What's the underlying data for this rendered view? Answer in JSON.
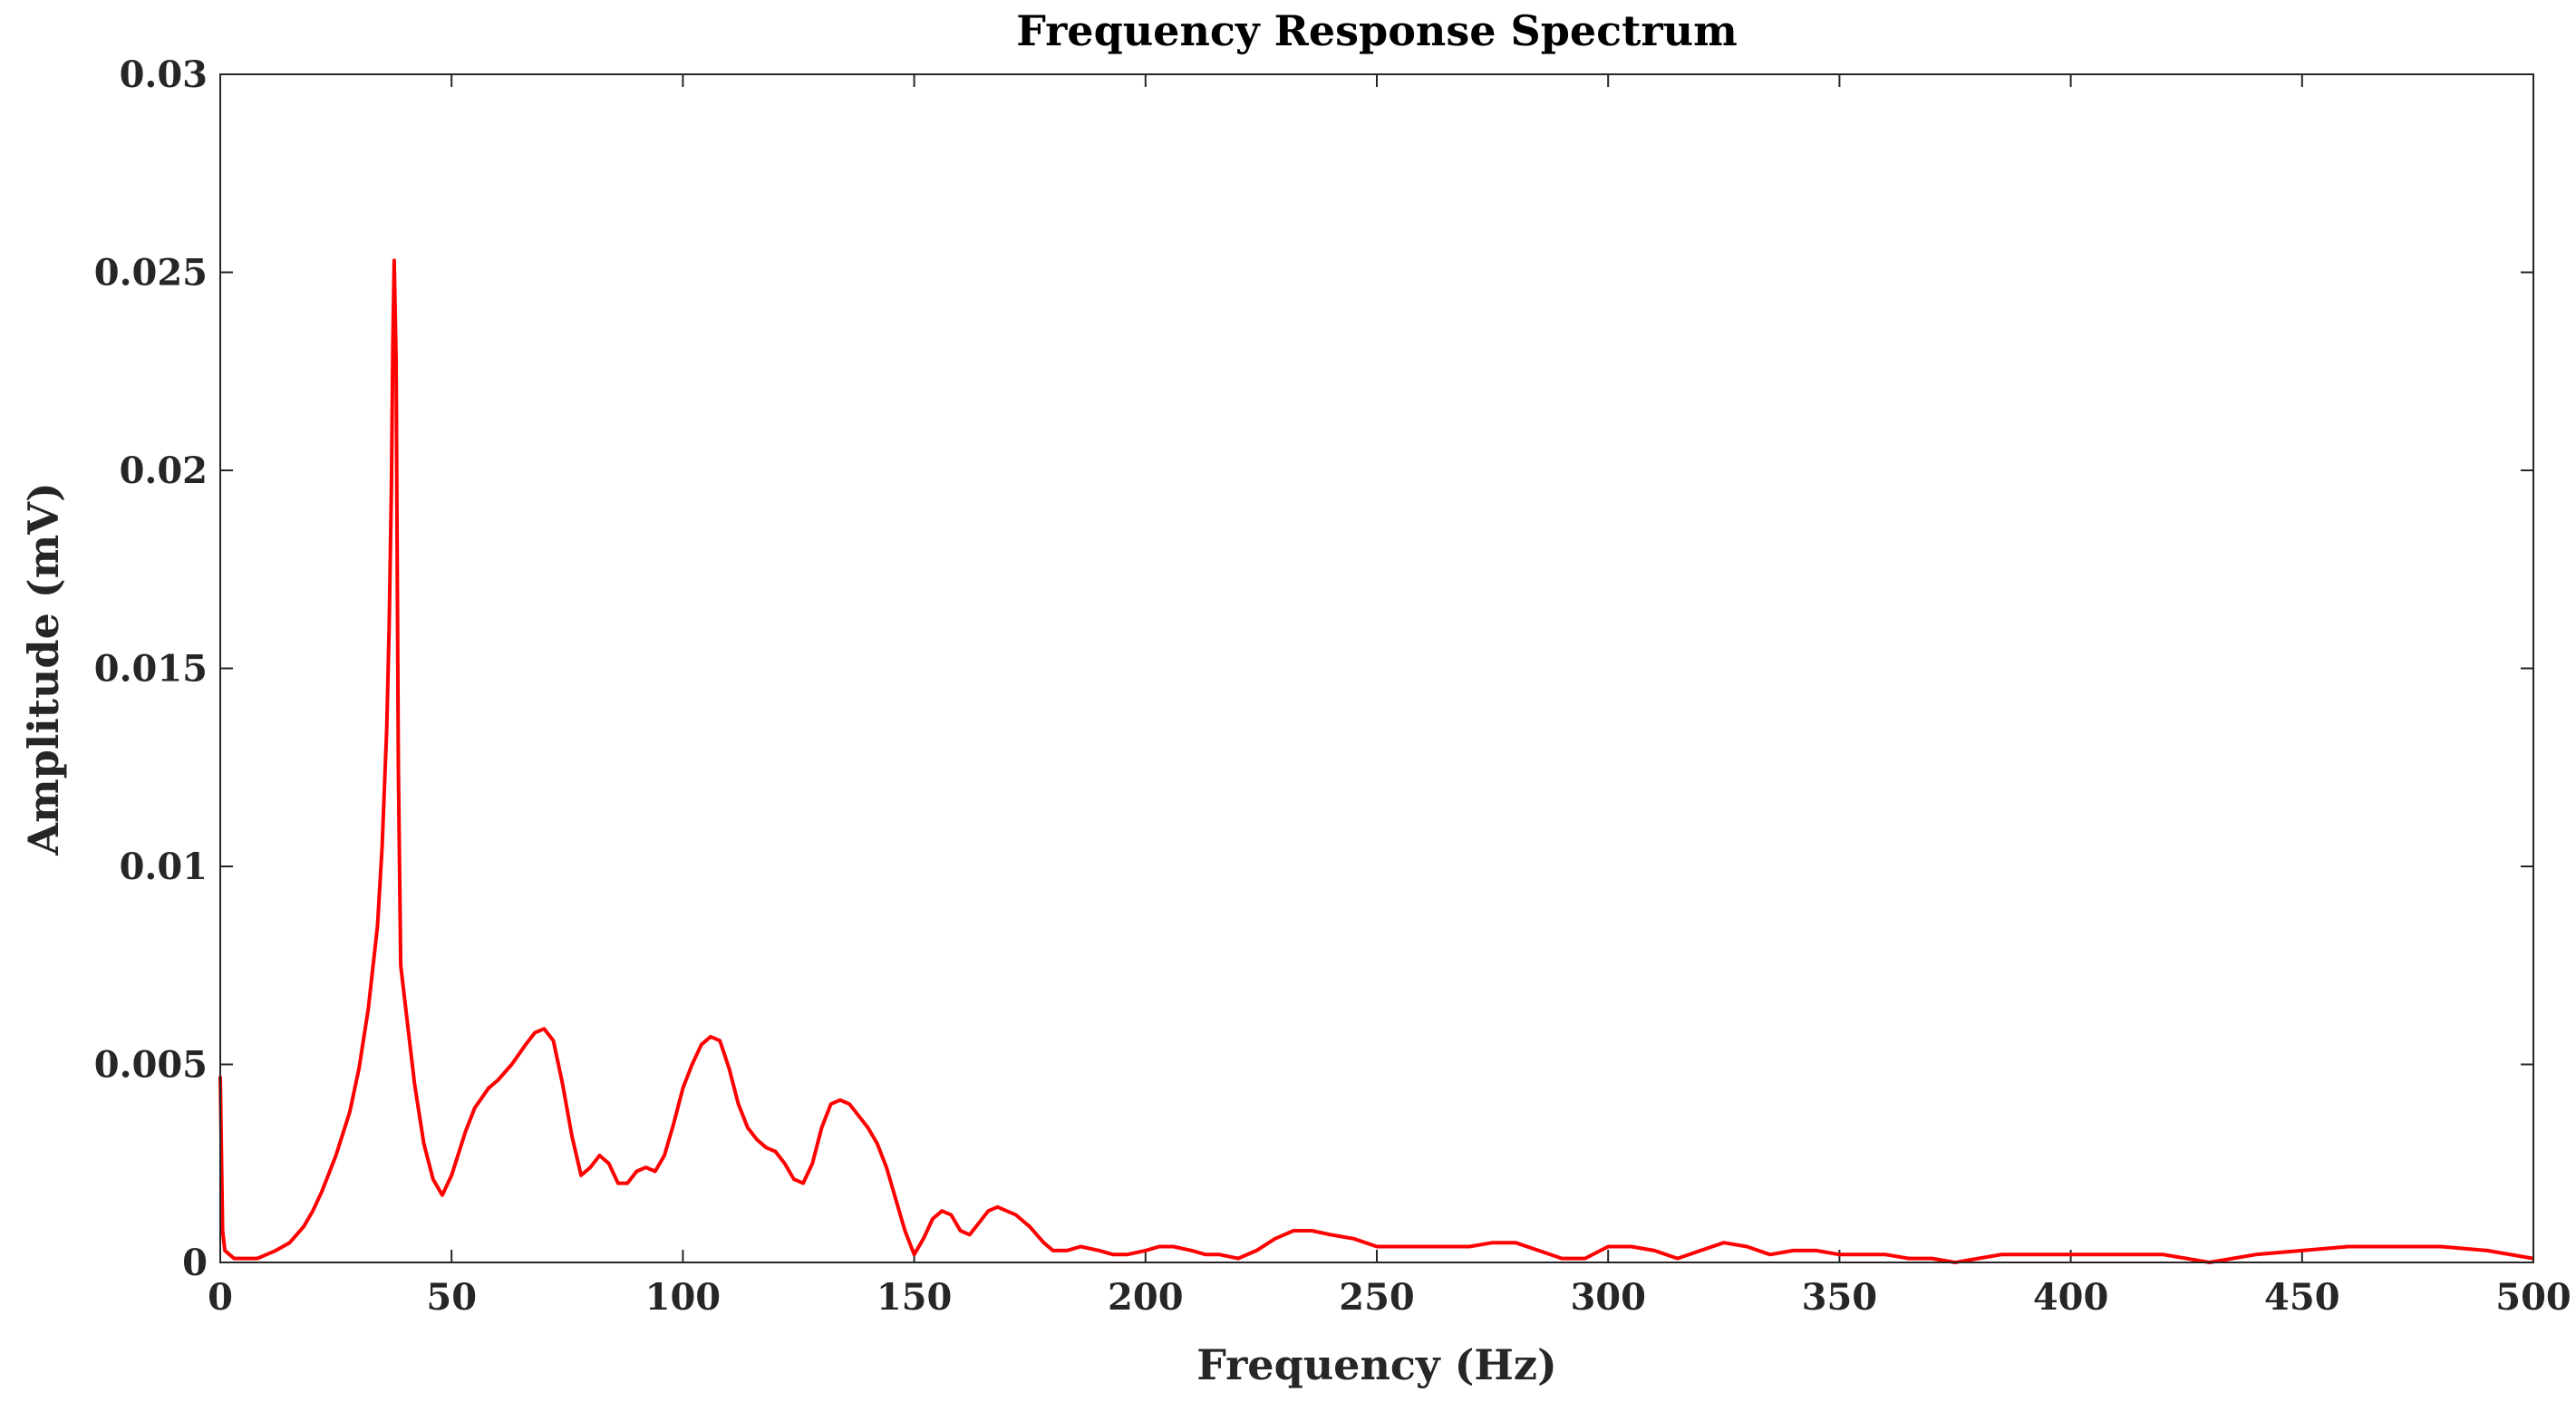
{
  "chart_data": {
    "type": "line",
    "title": "Frequency Response Spectrum",
    "xlabel": "Frequency (Hz)",
    "ylabel": "Amplitude (mV)",
    "xlim": [
      0,
      500
    ],
    "ylim": [
      0,
      0.03
    ],
    "x_ticks": [
      "0",
      "50",
      "100",
      "150",
      "200",
      "250",
      "300",
      "350",
      "400",
      "450",
      "500"
    ],
    "y_ticks": [
      "0",
      "0.005",
      "0.01",
      "0.015",
      "0.02",
      "0.025",
      "0.03"
    ],
    "grid": false,
    "series_color": "#ff0000",
    "series": [
      {
        "x": [
          0,
          0.5,
          1,
          2,
          3,
          5,
          8,
          10,
          12,
          15,
          18,
          20,
          22,
          25,
          28,
          30,
          32,
          34,
          35,
          36,
          36.5,
          37,
          37.3,
          37.6,
          38,
          38.5,
          39,
          40,
          42,
          44,
          46,
          48,
          50,
          53,
          55,
          58,
          60,
          63,
          66,
          68,
          70,
          72,
          74,
          76,
          78,
          80,
          82,
          84,
          86,
          88,
          90,
          92,
          94,
          96,
          98,
          100,
          102,
          104,
          106,
          108,
          110,
          112,
          114,
          116,
          118,
          120,
          122,
          124,
          126,
          128,
          130,
          132,
          134,
          136,
          138,
          140,
          142,
          144,
          146,
          148,
          150,
          152,
          154,
          156,
          158,
          160,
          162,
          164,
          166,
          168,
          170,
          172,
          175,
          178,
          180,
          183,
          186,
          190,
          193,
          196,
          200,
          203,
          206,
          210,
          213,
          216,
          220,
          224,
          228,
          232,
          236,
          240,
          245,
          250,
          255,
          260,
          265,
          270,
          275,
          280,
          285,
          290,
          295,
          300,
          305,
          310,
          315,
          320,
          325,
          330,
          335,
          340,
          345,
          350,
          355,
          360,
          365,
          370,
          375,
          380,
          385,
          390,
          400,
          410,
          420,
          425,
          430,
          435,
          440,
          450,
          460,
          470,
          480,
          490,
          500
        ],
        "y": [
          0.0047,
          0.0008,
          0.0003,
          0.0002,
          0.0001,
          0.0001,
          0.0001,
          0.0002,
          0.0003,
          0.0005,
          0.0009,
          0.0013,
          0.0018,
          0.0027,
          0.0038,
          0.0049,
          0.0064,
          0.0085,
          0.0105,
          0.0135,
          0.016,
          0.0195,
          0.0232,
          0.0253,
          0.0228,
          0.0125,
          0.0075,
          0.0065,
          0.0045,
          0.003,
          0.0021,
          0.0017,
          0.0022,
          0.0033,
          0.0039,
          0.0044,
          0.0046,
          0.005,
          0.0055,
          0.0058,
          0.0059,
          0.0056,
          0.0045,
          0.0032,
          0.0022,
          0.0024,
          0.0027,
          0.0025,
          0.002,
          0.002,
          0.0023,
          0.0024,
          0.0023,
          0.0027,
          0.0035,
          0.0044,
          0.005,
          0.0055,
          0.0057,
          0.0056,
          0.0049,
          0.004,
          0.0034,
          0.0031,
          0.0029,
          0.0028,
          0.0025,
          0.0021,
          0.002,
          0.0025,
          0.0034,
          0.004,
          0.0041,
          0.004,
          0.0037,
          0.0034,
          0.003,
          0.0024,
          0.0016,
          0.0008,
          0.0002,
          0.0006,
          0.0011,
          0.0013,
          0.0012,
          0.0008,
          0.0007,
          0.001,
          0.0013,
          0.0014,
          0.0013,
          0.0012,
          0.0009,
          0.0005,
          0.0003,
          0.0003,
          0.0004,
          0.0003,
          0.0002,
          0.0002,
          0.0003,
          0.0004,
          0.0004,
          0.0003,
          0.0002,
          0.0002,
          0.0001,
          0.0003,
          0.0006,
          0.0008,
          0.0008,
          0.0007,
          0.0006,
          0.0004,
          0.0004,
          0.0004,
          0.0004,
          0.0004,
          0.0005,
          0.0005,
          0.0003,
          0.0001,
          0.0001,
          0.0004,
          0.0004,
          0.0003,
          0.0001,
          0.0003,
          0.0005,
          0.0004,
          0.0002,
          0.0003,
          0.0003,
          0.0002,
          0.0002,
          0.0002,
          0.0001,
          0.0001,
          0,
          0.0001,
          0.0002,
          0.0002,
          0.0002,
          0.0002,
          0.0002,
          0.0001,
          0,
          0.0001,
          0.0002,
          0.0003,
          0.0004,
          0.0004,
          0.0004,
          0.0003,
          0.0001
        ]
      }
    ]
  }
}
